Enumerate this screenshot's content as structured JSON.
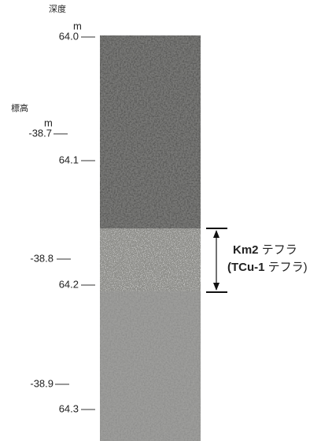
{
  "depth_scale": {
    "title": "深度",
    "unit": "m",
    "ticks": [
      "64.0",
      "64.1",
      "64.2",
      "64.3"
    ]
  },
  "elevation_scale": {
    "title": "標高",
    "unit": "m",
    "ticks": [
      "-38.7",
      "-38.8",
      "-38.9"
    ]
  },
  "annotation": {
    "name": "Km2",
    "name_suffix": "テフラ",
    "alias": "(TCu-1",
    "alias_suffix": "テフラ)"
  }
}
